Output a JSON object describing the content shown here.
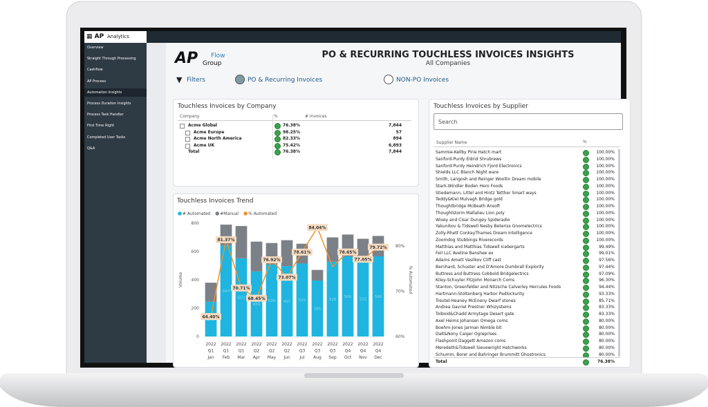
{
  "sidebar": {
    "brand": "AP",
    "brand_suffix": "Analytics",
    "active_item": 4,
    "items": [
      "Overview",
      "Straight Through Processing",
      "Cashflow",
      "AP Process",
      "Automation Insights",
      "Process Duration Insights",
      "Process Task Handler",
      "First Time Right",
      "Completed User Tasks",
      "Q&A"
    ]
  },
  "header": {
    "logo": "AP",
    "logo_flow": "Flow",
    "logo_group": "Group",
    "title": "PO & RECURRING TOUCHLESS INVOICES INSIGHTS",
    "subtitle": "All Companies"
  },
  "filters": {
    "label": "Filters",
    "options": [
      "PO & Recurring Invoices",
      "NON-PO Invoices"
    ],
    "selected": 0
  },
  "company_table": {
    "title": "Touchless Invoices by Company",
    "columns": [
      "Company",
      "%",
      "# Invoices"
    ],
    "rows": [
      {
        "name": "Acme Global",
        "percent": "76.38%",
        "invoices": "7,844",
        "children": [
          {
            "name": "Acme Europe",
            "percent": "98.25%",
            "invoices": "57"
          },
          {
            "name": "Acme North America",
            "percent": "82.33%",
            "invoices": "894"
          },
          {
            "name": "Acme UK",
            "percent": "75.42%",
            "invoices": "6,893"
          }
        ]
      }
    ],
    "total": {
      "name": "Total",
      "percent": "76.38%",
      "invoices": "7,844"
    }
  },
  "chart_data": {
    "type": "bar",
    "title": "Touchless Invoices Trend",
    "categories": [
      "2022 Q1 Jan",
      "2022 Q1 Feb",
      "2022 Q1 Mar",
      "2022 Q2 Apr",
      "2022 Q2 May",
      "2022 Q2 Jun",
      "2022 Q3 Jul",
      "2022 Q3 Aug",
      "2022 Q3 Sep",
      "2022 Q4 Oct",
      "2022 Q4 Nov",
      "2022 Q4 Dec"
    ],
    "series": [
      {
        "name": "# Automated",
        "type": "bar",
        "color": "#1fb5e0",
        "values": [
          245,
          643,
          552,
          459,
          508,
          497,
          515,
          395,
          528,
          566,
          532,
          566
        ]
      },
      {
        "name": "#Manual",
        "type": "bar",
        "color": "#7c8187",
        "values": [
          135,
          147,
          228,
          211,
          152,
          183,
          140,
          75,
          172,
          154,
          158,
          144
        ]
      },
      {
        "name": "% Automated",
        "type": "line",
        "axis": "y2",
        "color": "#f0922b",
        "values": [
          64.4,
          81.37,
          70.71,
          68.45,
          76.92,
          73.07,
          78.61,
          84.04,
          75.4,
          78.65,
          77.05,
          79.72
        ],
        "value_labels": [
          "64.40%",
          "81.37%",
          "70.71%",
          "68.45%",
          "76.92%",
          "73.07%",
          "78.61%",
          "84.04%",
          null,
          "78.65%",
          "77.05%",
          "79.72%"
        ]
      }
    ],
    "ylabel": "Volume",
    "y2label": "% Automated",
    "ylim": [
      0,
      800
    ],
    "yticks": [
      0,
      200,
      400,
      600,
      800
    ],
    "y2lim": [
      60,
      85
    ],
    "y2ticks": [
      {
        "value": 60,
        "label": "60%"
      },
      {
        "value": 70,
        "label": "70%"
      },
      {
        "value": 80,
        "label": "80%"
      }
    ],
    "grid": false,
    "legend": "top-left"
  },
  "supplier_table": {
    "title": "Touchless Invoices by Supplier",
    "search": "Search",
    "columns": [
      "Supplier Name",
      "%"
    ],
    "rows": [
      [
        "Sammie-Kellby Pirie Hatch mart",
        "100.00%"
      ],
      [
        "Sanford-Purdy Eldrid Shrubrews",
        "100.00%"
      ],
      [
        "Sanford-Purdy Heindrich Fjord Electronics",
        "100.00%"
      ],
      [
        "Shields LLC Blanch Night ware",
        "100.00%"
      ],
      [
        "Smith, Langosh and Reinger Woollin Dream mobile",
        "100.00%"
      ],
      [
        "Stark-Windler Boden Hero Foods",
        "100.00%"
      ],
      [
        "Stiedemann, Littel and Hintz Tetther Smart ways",
        "100.00%"
      ],
      [
        "Teddy&Kiel Mulvagh Bridge gold",
        "100.00%"
      ],
      [
        "Thoughtbridge McBeath Ansoft",
        "100.00%"
      ],
      [
        "Thoughtstorm Mallalieu Lion poly",
        "100.00%"
      ],
      [
        "Wixey and Cisar Dungey Spideradio",
        "100.00%"
      ],
      [
        "Yakunikov & Tidswell Nesby Beteriss Gnomelectrics",
        "100.00%"
      ],
      [
        "Zolly-Rhett ConkayThames Dream Intelligence",
        "100.00%"
      ],
      [
        "Zoomdog Stubbings Riverecords",
        "100.00%"
      ],
      [
        "Matthias and Matthias Tidswell Icebergarts",
        "99.49%"
      ],
      [
        "Feil LLC Aveline Banshee ex",
        "99.01%"
      ],
      [
        "Adams Amatt Vasilkov Cliff cast",
        "97.56%"
      ],
      [
        "Bernhard, Schuster and D'Amore Dumbrall Explority",
        "97.44%"
      ],
      [
        "Buttress and Buttress Cobbold Bridgelectrics",
        "97.09%"
      ],
      [
        "Kiley-Schuyler Fitzjohn Monarch Coms",
        "96.30%"
      ],
      [
        "Stanton, Greenfelder and Nitzsche Calverley Hercules Foods",
        "94.44%"
      ],
      [
        "Hartmann-Stoltenberg Harbor Padlockurity",
        "93.33%"
      ],
      [
        "Treutel-Heaney McEneny Dwarf stones",
        "85.71%"
      ],
      [
        "Andrea Gavriel Prestner Whizystems",
        "83.33%"
      ],
      [
        "Toiboid&Chadd Armytage Desert gate",
        "83.33%"
      ],
      [
        "Axel Heims Johansen Omega coms",
        "80.00%"
      ],
      [
        "Boehm-Jones Jarman Nimble bit",
        "80.00%"
      ],
      [
        "Dalt&Nony Caiger Ogreprises",
        "80.00%"
      ],
      [
        "Flashpoint Daggett Amazon coms",
        "80.00%"
      ],
      [
        "Meredeth&Tidswell Sievewright Hatchworks",
        "80.00%"
      ],
      [
        "Schumm, Borer and Bahringer Brummitt Ghostronics",
        "80.00%"
      ]
    ],
    "total": [
      "Total",
      "76.38%"
    ]
  }
}
